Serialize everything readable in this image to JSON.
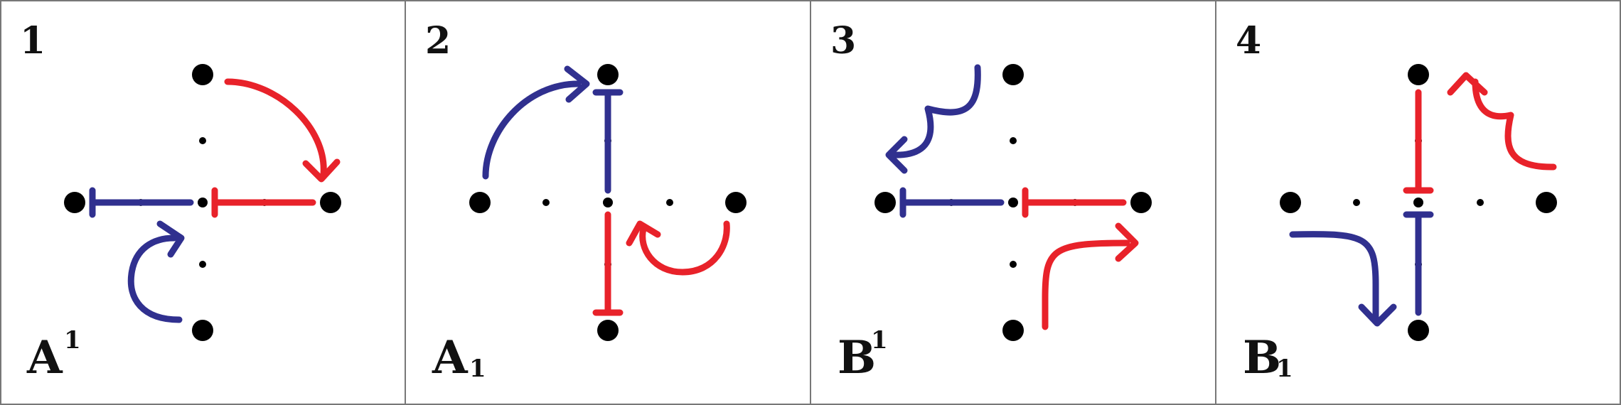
{
  "colors": {
    "blue": "#30308f",
    "red": "#e8222a",
    "black": "#000000",
    "divider": "#777777"
  },
  "panels": [
    {
      "number": "1",
      "label": "A",
      "superscript": "1",
      "subscript": ""
    },
    {
      "number": "2",
      "label": "A",
      "superscript": "",
      "subscript": "1"
    },
    {
      "number": "3",
      "label": "B",
      "superscript": "1",
      "subscript": ""
    },
    {
      "number": "4",
      "label": "B",
      "superscript": "",
      "subscript": "1"
    }
  ]
}
